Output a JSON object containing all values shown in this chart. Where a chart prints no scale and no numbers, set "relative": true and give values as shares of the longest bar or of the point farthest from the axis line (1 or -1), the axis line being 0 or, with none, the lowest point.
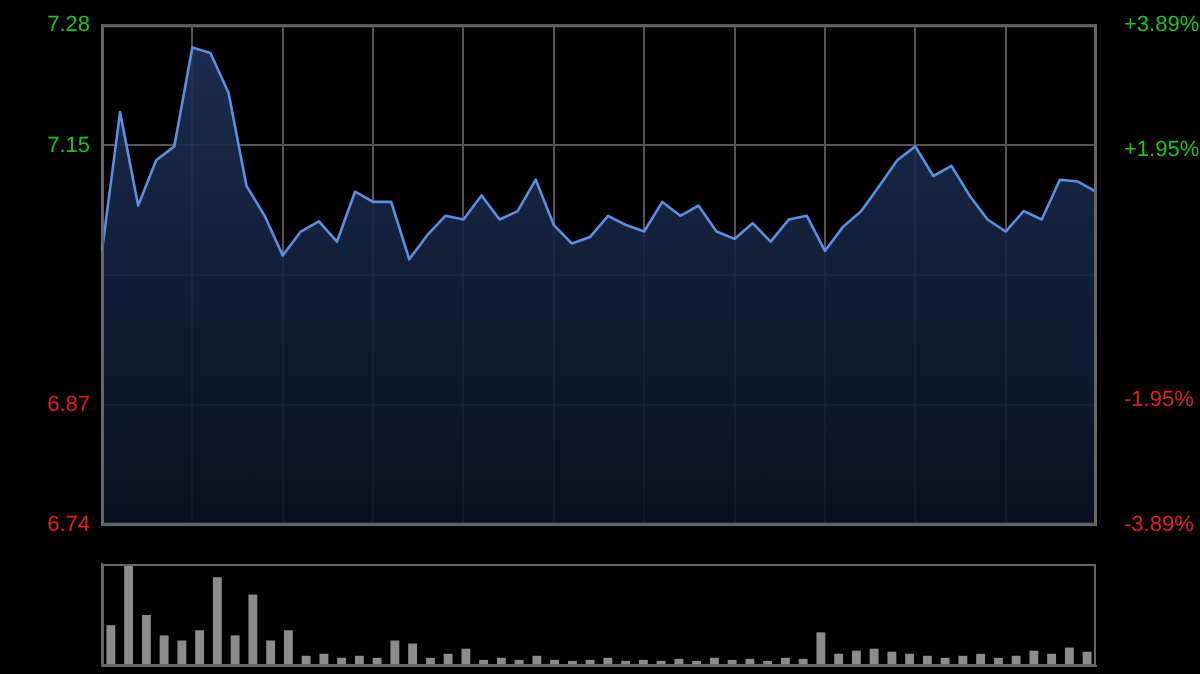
{
  "chart_data": [
    {
      "type": "area",
      "categories": [
        null,
        null,
        null,
        null,
        null,
        null,
        null,
        null,
        null,
        null,
        null,
        null,
        null,
        null,
        null,
        null,
        null,
        null,
        null,
        null,
        null,
        null,
        null,
        null,
        null,
        null,
        null,
        null,
        null,
        null,
        null,
        null,
        null,
        null,
        null,
        null,
        null,
        null,
        null,
        null,
        null,
        null,
        null,
        null,
        null,
        null,
        null,
        null,
        null,
        null,
        null,
        null,
        null,
        null,
        null,
        null
      ],
      "series": [
        {
          "color": "#5b8fe0",
          "values": [
            7.036,
            7.186,
            7.085,
            7.134,
            7.149,
            7.256,
            7.25,
            7.207,
            7.106,
            7.074,
            7.031,
            7.057,
            7.068,
            7.046,
            7.1,
            7.089,
            7.089,
            7.027,
            7.053,
            7.074,
            7.07,
            7.096,
            7.07,
            7.079,
            7.113,
            7.064,
            7.044,
            7.051,
            7.074,
            7.064,
            7.057,
            7.089,
            7.074,
            7.085,
            7.057,
            7.049,
            7.066,
            7.046,
            7.07,
            7.074,
            7.036,
            7.062,
            7.079,
            7.106,
            7.134,
            7.149,
            7.117,
            7.128,
            7.096,
            7.07,
            7.057,
            7.079,
            7.07,
            7.113,
            7.111,
            7.1
          ]
        }
      ],
      "ylim": [
        6.74,
        7.28
      ],
      "yticks": [
        6.74,
        6.87,
        {
          "value": 7.01,
          "label": null
        },
        7.15,
        7.28
      ],
      "y2lim": [
        -3.89,
        3.89
      ],
      "y2ticks": [
        {
          "value": -3.89,
          "label": "-3.89%"
        },
        {
          "value": -1.95,
          "label": "-1.95%"
        },
        {
          "value": 0,
          "label": null
        },
        {
          "value": 1.95,
          "label": "+1.95%"
        },
        {
          "value": 3.89,
          "label": "+3.89%"
        }
      ],
      "grid": true,
      "tick_labels": "y"
    },
    {
      "type": "bar",
      "relative": true,
      "categories": [
        null,
        null,
        null,
        null,
        null,
        null,
        null,
        null,
        null,
        null,
        null,
        null,
        null,
        null,
        null,
        null,
        null,
        null,
        null,
        null,
        null,
        null,
        null,
        null,
        null,
        null,
        null,
        null,
        null,
        null,
        null,
        null,
        null,
        null,
        null,
        null,
        null,
        null,
        null,
        null,
        null,
        null,
        null,
        null,
        null,
        null,
        null,
        null,
        null,
        null,
        null,
        null,
        null,
        null,
        null,
        null
      ],
      "color": "#8c8c8c",
      "values": [
        0.4,
        1,
        0.5,
        0.3,
        0.25,
        0.35,
        0.87,
        0.3,
        0.7,
        0.25,
        0.35,
        0.1,
        0.12,
        0.08,
        0.1,
        0.08,
        0.25,
        0.22,
        0.08,
        0.12,
        0.17,
        0.06,
        0.08,
        0.06,
        0.1,
        0.06,
        0.05,
        0.06,
        0.08,
        0.05,
        0.06,
        0.05,
        0.07,
        0.05,
        0.08,
        0.06,
        0.07,
        0.05,
        0.08,
        0.07,
        0.33,
        0.12,
        0.15,
        0.17,
        0.14,
        0.12,
        0.1,
        0.08,
        0.1,
        0.12,
        0.08,
        0.1,
        0.15,
        0.12,
        0.18,
        0.14
      ]
    }
  ]
}
